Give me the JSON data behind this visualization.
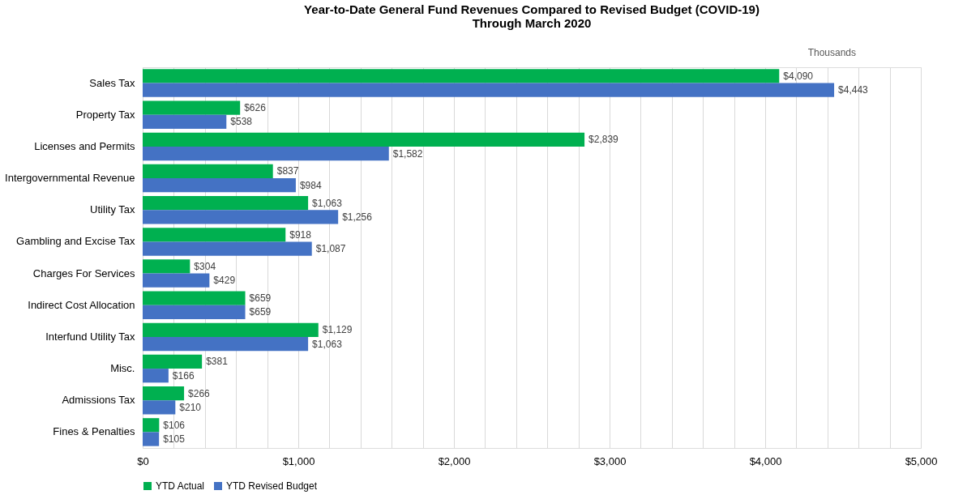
{
  "chart_data": {
    "type": "bar",
    "orientation": "horizontal",
    "title": "Year-to-Date General Fund Revenues Compared to Revised Budget (COVID-19)\nThrough March 2020",
    "categories": [
      "Sales Tax",
      "Property Tax",
      "Licenses and Permits",
      "Intergovernmental Revenue",
      "Utility Tax",
      "Gambling and Excise Tax",
      "Charges For Services",
      "Indirect Cost Allocation",
      "Interfund Utility Tax",
      "Misc.",
      "Admissions Tax",
      "Fines & Penalties"
    ],
    "series": [
      {
        "name": "YTD Actual",
        "color": "#00b050",
        "values": [
          4090,
          626,
          2839,
          837,
          1063,
          918,
          304,
          659,
          1129,
          381,
          266,
          106
        ],
        "value_labels": [
          "$4,090",
          "$626",
          "$2,839",
          "$837",
          "$1,063",
          "$918",
          "$304",
          "$659",
          "$1,129",
          "$381",
          "$266",
          "$106"
        ]
      },
      {
        "name": "YTD Revised Budget",
        "color": "#4472c4",
        "values": [
          4443,
          538,
          1582,
          984,
          1256,
          1087,
          429,
          659,
          1063,
          166,
          210,
          105
        ],
        "value_labels": [
          "$4,443",
          "$538",
          "$1,582",
          "$984",
          "$1,256",
          "$1,087",
          "$429",
          "$659",
          "$1,063",
          "$166",
          "$210",
          "$105"
        ]
      }
    ],
    "xlim": [
      0,
      5000
    ],
    "xticks": [
      {
        "value": 0,
        "label": "$0"
      },
      {
        "value": 200,
        "label": null
      },
      {
        "value": 400,
        "label": null
      },
      {
        "value": 600,
        "label": null
      },
      {
        "value": 800,
        "label": null
      },
      {
        "value": 1000,
        "label": "$1,000"
      },
      {
        "value": 1200,
        "label": null
      },
      {
        "value": 1400,
        "label": null
      },
      {
        "value": 1600,
        "label": null
      },
      {
        "value": 1800,
        "label": null
      },
      {
        "value": 2000,
        "label": "$2,000"
      },
      {
        "value": 2200,
        "label": null
      },
      {
        "value": 2400,
        "label": null
      },
      {
        "value": 2600,
        "label": null
      },
      {
        "value": 2800,
        "label": null
      },
      {
        "value": 3000,
        "label": "$3,000"
      },
      {
        "value": 3200,
        "label": null
      },
      {
        "value": 3400,
        "label": null
      },
      {
        "value": 3600,
        "label": null
      },
      {
        "value": 3800,
        "label": null
      },
      {
        "value": 4000,
        "label": "$4,000"
      },
      {
        "value": 4200,
        "label": null
      },
      {
        "value": 4400,
        "label": null
      },
      {
        "value": 4600,
        "label": null
      },
      {
        "value": 4800,
        "label": null
      },
      {
        "value": 5000,
        "label": "$5,000"
      }
    ],
    "grid": "x",
    "legend": "bottom",
    "annotations": [
      "Thousands"
    ]
  }
}
